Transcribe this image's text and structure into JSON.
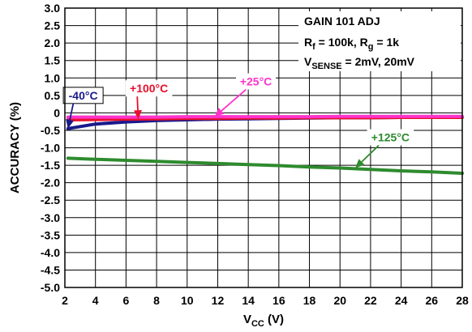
{
  "chart_data": {
    "type": "line",
    "xlabel": {
      "main": "V",
      "sub": "CC",
      "unit": " (V)"
    },
    "ylabel": "ACCURACY (%)",
    "xlim": [
      2,
      28
    ],
    "ylim": [
      -5.0,
      3.0
    ],
    "xticks": [
      2,
      4,
      6,
      8,
      10,
      12,
      14,
      16,
      18,
      20,
      22,
      24,
      26,
      28
    ],
    "yticks": [
      "3.0",
      "2.5",
      "2.0",
      "1.5",
      "1.0",
      "0.5",
      "0",
      "-0.5",
      "-1.0",
      "-1.5",
      "-2.0",
      "-2.5",
      "-3.0",
      "-3.5",
      "-4.0",
      "-4.5",
      "-5.0"
    ],
    "grid": true,
    "conditions": {
      "line1": "GAIN 101 ADJ",
      "line2": {
        "a": "R",
        "a_sub": "f",
        "b": " = 100k, R",
        "b_sub": "g",
        "c": " = 1k"
      },
      "line3": {
        "a": "V",
        "a_sub": "SENSE",
        "b": " = 2mV, 20mV"
      }
    },
    "series": [
      {
        "name": "-40°C",
        "color": "#1a1a8c",
        "x": [
          2.2,
          4,
          6,
          8,
          10,
          12,
          14,
          16,
          18,
          20,
          22,
          24,
          26,
          28
        ],
        "y": [
          -0.45,
          -0.32,
          -0.26,
          -0.22,
          -0.2,
          -0.18,
          -0.17,
          -0.16,
          -0.15,
          -0.14,
          -0.14,
          -0.13,
          -0.13,
          -0.12
        ]
      },
      {
        "name": "+100°C",
        "color": "#e8102e",
        "x": [
          2.2,
          4,
          6,
          8,
          10,
          12,
          14,
          16,
          18,
          20,
          22,
          24,
          26,
          28
        ],
        "y": [
          -0.2,
          -0.19,
          -0.18,
          -0.17,
          -0.16,
          -0.16,
          -0.15,
          -0.15,
          -0.14,
          -0.14,
          -0.14,
          -0.13,
          -0.13,
          -0.13
        ]
      },
      {
        "name": "+25°C",
        "color": "#ff33cc",
        "x": [
          2.2,
          4,
          6,
          8,
          10,
          12,
          14,
          16,
          18,
          20,
          22,
          24,
          26,
          28
        ],
        "y": [
          -0.12,
          -0.12,
          -0.12,
          -0.12,
          -0.11,
          -0.11,
          -0.11,
          -0.11,
          -0.11,
          -0.1,
          -0.1,
          -0.1,
          -0.1,
          -0.1
        ]
      },
      {
        "name": "+125°C",
        "color": "#2e8b2e",
        "x": [
          2.2,
          4,
          6,
          8,
          10,
          12,
          14,
          16,
          18,
          20,
          22,
          24,
          26,
          28
        ],
        "y": [
          -1.3,
          -1.33,
          -1.36,
          -1.39,
          -1.42,
          -1.45,
          -1.48,
          -1.51,
          -1.55,
          -1.58,
          -1.62,
          -1.66,
          -1.69,
          -1.73
        ]
      }
    ],
    "annotations": [
      {
        "text": "-40°C",
        "color": "#1a1a8c",
        "box": true,
        "text_x": 3.2,
        "text_y": 0.5,
        "tip_x": 2.2,
        "tip_y": -0.45
      },
      {
        "text": "+100°C",
        "color": "#e8102e",
        "box": false,
        "text_x": 7.5,
        "text_y": 0.7,
        "tip_x": 6.8,
        "tip_y": -0.18
      },
      {
        "text": "+25°C",
        "color": "#ff33cc",
        "box": false,
        "text_x": 14.5,
        "text_y": 0.9,
        "tip_x": 11.8,
        "tip_y": -0.11
      },
      {
        "text": "+125°C",
        "color": "#2e8b2e",
        "box": false,
        "text_x": 23.3,
        "text_y": -0.7,
        "tip_x": 21.0,
        "tip_y": -1.58
      }
    ]
  }
}
